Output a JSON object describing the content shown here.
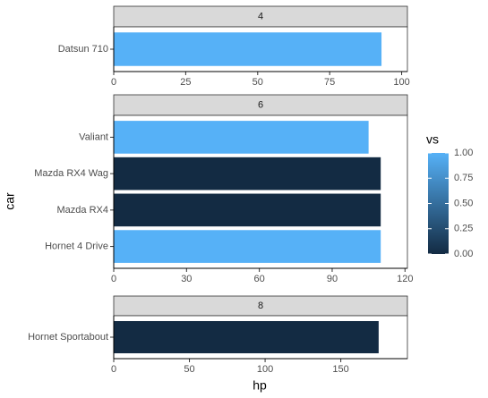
{
  "chart_data": {
    "type": "bar",
    "orientation": "horizontal",
    "xlabel": "hp",
    "ylabel": "car",
    "colorbar": {
      "title": "vs",
      "lim": [
        0,
        1
      ],
      "colors": [
        "#132B43",
        "#56B1F7"
      ],
      "ticks": [
        {
          "value": 0,
          "label": "0.00"
        },
        {
          "value": 0.25,
          "label": "0.25"
        },
        {
          "value": 0.5,
          "label": "0.50"
        },
        {
          "value": 0.75,
          "label": "0.75"
        },
        {
          "value": 1,
          "label": "1.00"
        }
      ]
    },
    "facets": [
      {
        "title": "4",
        "categories": [
          "Datsun 710"
        ],
        "values": [
          93
        ],
        "vs": [
          1
        ],
        "xlim": [
          0,
          102
        ],
        "xticks": [
          0,
          25,
          50,
          75,
          100
        ]
      },
      {
        "title": "6",
        "categories": [
          "Hornet 4 Drive",
          "Mazda RX4",
          "Mazda RX4 Wag",
          "Valiant"
        ],
        "values": [
          110,
          110,
          110,
          105
        ],
        "vs": [
          1,
          0,
          0,
          1
        ],
        "xlim": [
          0,
          121
        ],
        "xticks": [
          0,
          30,
          60,
          90,
          120
        ]
      },
      {
        "title": "8",
        "categories": [
          "Hornet Sportabout"
        ],
        "values": [
          175
        ],
        "vs": [
          0
        ],
        "xlim": [
          0,
          194
        ],
        "xticks": [
          0,
          50,
          100,
          150
        ]
      }
    ]
  }
}
